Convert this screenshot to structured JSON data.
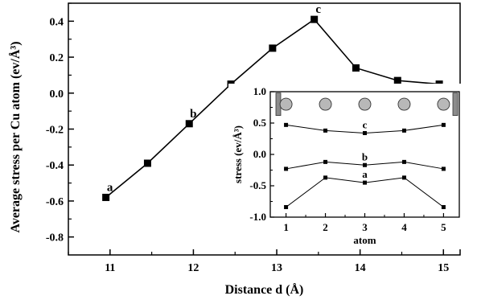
{
  "chart_data": [
    {
      "type": "line",
      "xlabel": "Distance d (Å)",
      "ylabel": "Average stress per Cu atom (ev/Å³)",
      "xlim": [
        10.5,
        15.2
      ],
      "ylim": [
        -0.9,
        0.5
      ],
      "xticks": [
        "11",
        "12",
        "13",
        "14",
        "15"
      ],
      "yticks": [
        "0.4",
        "0.2",
        "0.0",
        "-0.2",
        "-0.4",
        "-0.6",
        "-0.8"
      ],
      "grid": false,
      "series": [
        {
          "x": [
            10.95,
            11.45,
            11.95,
            12.45,
            12.95,
            13.45,
            13.95,
            14.45,
            14.95
          ],
          "y": [
            -0.58,
            -0.39,
            -0.17,
            0.05,
            0.25,
            0.41,
            0.14,
            0.07,
            0.05
          ]
        }
      ],
      "annotations": [
        {
          "text": "a",
          "x": 10.95,
          "y": -0.58
        },
        {
          "text": "b",
          "x": 11.95,
          "y": -0.17
        },
        {
          "text": "c",
          "x": 13.45,
          "y": 0.41
        }
      ]
    },
    {
      "type": "line",
      "xlabel": "atom",
      "ylabel": "stress (ev/Å³)",
      "xlim": [
        0.6,
        5.4
      ],
      "ylim": [
        -1.0,
        1.0
      ],
      "xticks": [
        "1",
        "2",
        "3",
        "4",
        "5"
      ],
      "yticks": [
        "1.0",
        "0.5",
        "0.0",
        "-0.5",
        "-1.0"
      ],
      "grid": false,
      "series": [
        {
          "label": "c",
          "x": [
            1,
            2,
            3,
            4,
            5
          ],
          "y": [
            0.47,
            0.38,
            0.34,
            0.38,
            0.47
          ]
        },
        {
          "label": "b",
          "x": [
            1,
            2,
            3,
            4,
            5
          ],
          "y": [
            -0.23,
            -0.12,
            -0.17,
            -0.12,
            -0.23
          ]
        },
        {
          "label": "a",
          "x": [
            1,
            2,
            3,
            4,
            5
          ],
          "y": [
            -0.84,
            -0.37,
            -0.45,
            -0.37,
            -0.84
          ]
        }
      ],
      "atom_row": {
        "x": [
          1,
          2,
          3,
          4,
          5
        ],
        "y": 0.8,
        "atom_color": "#b8b8b8",
        "electrode_color": "#8c8c8c"
      }
    }
  ]
}
